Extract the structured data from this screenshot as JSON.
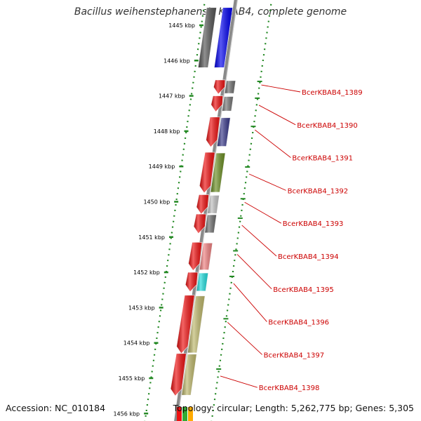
{
  "title": "Bacillus weihenstephanensis KBAB4, complete genome",
  "footer": {
    "accession": "Accession: NC_010184",
    "summary": "Topology: circular; Length: 5,262,775 bp; Genes: 5,305"
  },
  "ruler": {
    "ticks": [
      "1445 kbp",
      "1446 kbp",
      "1447 kbp",
      "1448 kbp",
      "1449 kbp",
      "1450 kbp",
      "1451 kbp",
      "1452 kbp",
      "1453 kbp",
      "1454 kbp",
      "1455 kbp",
      "1456 kbp"
    ],
    "start_kbp": 1445,
    "end_kbp": 1456
  },
  "colors": {
    "backbone": "#888888",
    "gene_arrow": "#ee1111",
    "ruler_tick": "#228822",
    "label": "#cc0000"
  },
  "genes": [
    {
      "label": "BcerKBAB4_1389",
      "start_kbp": 1446.55,
      "end_kbp": 1446.95,
      "color": "#6e6e6e"
    },
    {
      "label": "BcerKBAB4_1390",
      "start_kbp": 1447.0,
      "end_kbp": 1447.45,
      "color": "#777777"
    },
    {
      "label": "BcerKBAB4_1391",
      "start_kbp": 1447.6,
      "end_kbp": 1448.45,
      "color": "#3a3a8a"
    },
    {
      "label": "BcerKBAB4_1392",
      "start_kbp": 1448.6,
      "end_kbp": 1449.75,
      "color": "#6b8e23"
    },
    {
      "label": "BcerKBAB4_1393",
      "start_kbp": 1449.8,
      "end_kbp": 1450.35,
      "color": "#c0c0c0"
    },
    {
      "label": "BcerKBAB4_1394",
      "start_kbp": 1450.35,
      "end_kbp": 1450.9,
      "color": "#6e6e6e"
    },
    {
      "label": "BcerKBAB4_1395",
      "start_kbp": 1451.15,
      "end_kbp": 1451.95,
      "color": "#f08080"
    },
    {
      "label": "BcerKBAB4_1396",
      "start_kbp": 1452.0,
      "end_kbp": 1452.55,
      "color": "#22dddd"
    },
    {
      "label": "BcerKBAB4_1397",
      "start_kbp": 1452.65,
      "end_kbp": 1454.3,
      "color": "#bdb76b"
    },
    {
      "label": "BcerKBAB4_1398",
      "start_kbp": 1454.3,
      "end_kbp": 1455.5,
      "color": "#bdb76b"
    }
  ],
  "top_features": [
    {
      "start_kbp": 1444.5,
      "end_kbp": 1446.2,
      "color": "#555555"
    },
    {
      "start_kbp": 1444.5,
      "end_kbp": 1446.2,
      "color": "#0000ee"
    }
  ]
}
